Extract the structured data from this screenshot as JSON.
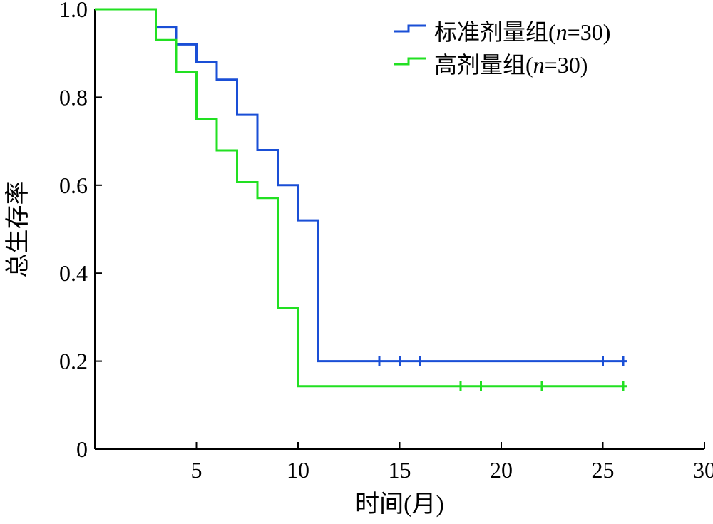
{
  "chart_data": {
    "type": "line",
    "step": true,
    "xlabel": "时间(月)",
    "ylabel": "总生存率",
    "xlim": [
      0,
      30
    ],
    "ylim": [
      0,
      1.0
    ],
    "x_ticks": [
      5,
      10,
      15,
      20,
      25,
      30
    ],
    "x_tick_labels": [
      "5",
      "10",
      "15",
      "20",
      "25",
      "30"
    ],
    "y_ticks": [
      0,
      0.2,
      0.4,
      0.6,
      0.8,
      1.0
    ],
    "y_tick_labels": [
      "0",
      "0.2",
      "0.4",
      "0.6",
      "0.8",
      "1.0"
    ],
    "grid": false,
    "legend_position": "top-right",
    "series": [
      {
        "name": "标准剂量组(n=30)",
        "legend": {
          "main": "标准剂量组(",
          "italic": "n",
          "rest": "=30)"
        },
        "color": "#1a4fd6",
        "steps": [
          [
            0,
            1.0
          ],
          [
            3,
            0.96
          ],
          [
            4,
            0.92
          ],
          [
            5,
            0.88
          ],
          [
            6,
            0.84
          ],
          [
            7,
            0.76
          ],
          [
            8,
            0.68
          ],
          [
            9,
            0.6
          ],
          [
            10,
            0.52
          ],
          [
            11,
            0.2
          ]
        ],
        "end_x": 26.2,
        "censored": [
          14,
          15,
          16,
          25,
          26
        ]
      },
      {
        "name": "高剂量组(n=30)",
        "legend": {
          "main": "高剂量组(",
          "italic": "n",
          "rest": "=30)"
        },
        "color": "#22e022",
        "steps": [
          [
            0,
            1.0
          ],
          [
            3,
            0.93
          ],
          [
            4,
            0.857
          ],
          [
            5,
            0.75
          ],
          [
            6,
            0.679
          ],
          [
            7,
            0.607
          ],
          [
            8,
            0.571
          ],
          [
            9,
            0.321
          ],
          [
            10,
            0.143
          ]
        ],
        "end_x": 26.2,
        "censored": [
          18,
          19,
          22,
          26
        ]
      }
    ]
  }
}
